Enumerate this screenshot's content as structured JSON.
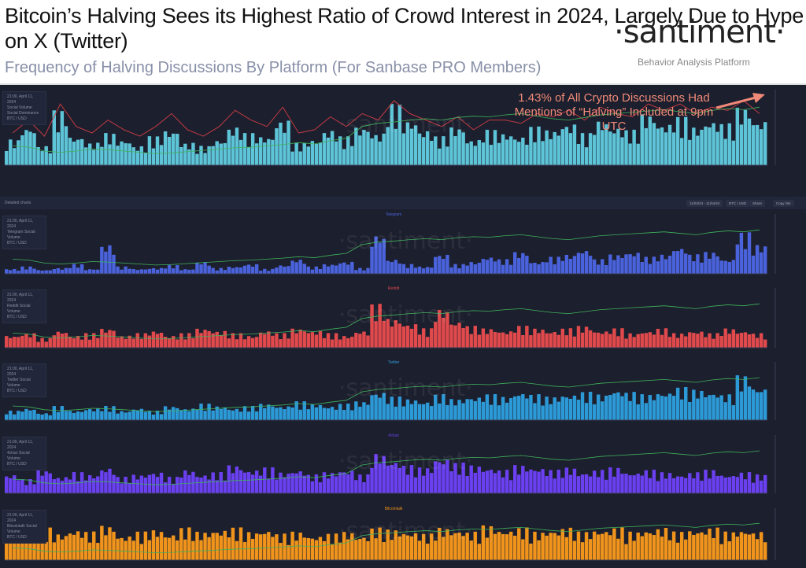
{
  "header": {
    "title": "Bitcoin’s Halving Sees its Highest Ratio of Crowd Interest in 2024, Largely Due to Hype on X (Twitter)",
    "subtitle": "Frequency of Halving Discussions By Platform (For Sanbase PRO Members)",
    "logo": "·santiment·",
    "logo_tagline": "Behavior Analysis Platform"
  },
  "annotation": "1.43% of All Crypto Discussions Had Mentions of “Halving” Included at 9pm UTC",
  "watermark": "·santiment·",
  "toolbar": {
    "section": "Detailed charts",
    "date_range": "11/03/24 - 11/04/24",
    "pair": "BTC / USD",
    "share": "Share",
    "copy_link": "Copy link"
  },
  "colors": {
    "social_volume": "#5ec4d8",
    "social_dominance": "#c23a44",
    "btc_price": "#3fb35c",
    "telegram": "#4a63dc",
    "reddit": "#e04a4c",
    "twitter": "#2d9ad8",
    "4chan": "#6a40f0",
    "bitcointalk": "#f0941c"
  },
  "chart_data": [
    {
      "type": "bar",
      "title": "",
      "legend": {
        "timestamp": "21:00, April 11, 2024",
        "items": [
          "Social Volume",
          "Social Dominance",
          "BTC / USD"
        ]
      },
      "series": [
        {
          "name": "Social Volume",
          "values": [
            40,
            60,
            30,
            85,
            45,
            35,
            50,
            40,
            30,
            45,
            55,
            35,
            30,
            40,
            60,
            50,
            45,
            70,
            35,
            40,
            55,
            45,
            60,
            50,
            95,
            70,
            55,
            45,
            60,
            40,
            55,
            50,
            45,
            60,
            55,
            65,
            50,
            70,
            60,
            55,
            80,
            65,
            75,
            60,
            70,
            65,
            90,
            70
          ]
        },
        {
          "name": "Social Dominance",
          "values": [
            50,
            70,
            45,
            95,
            60,
            50,
            70,
            55,
            45,
            60,
            80,
            55,
            45,
            60,
            85,
            70,
            60,
            90,
            50,
            55,
            75,
            60,
            80,
            70,
            100,
            80,
            70,
            60,
            75,
            55,
            70,
            70,
            65,
            80,
            75,
            85,
            70,
            90,
            80,
            75,
            95,
            85,
            95,
            80,
            90,
            85,
            100,
            80
          ]
        },
        {
          "name": "BTC / USD",
          "values": [
            30,
            28,
            22,
            20,
            22,
            25,
            24,
            22,
            20,
            18,
            19,
            21,
            23,
            25,
            27,
            28,
            30,
            32,
            35,
            33,
            38,
            42,
            60,
            65,
            67,
            70,
            72,
            70,
            74,
            76,
            75,
            78,
            80,
            76,
            72,
            70,
            74,
            78,
            80,
            82,
            84,
            86,
            83,
            80,
            85,
            88,
            86,
            90
          ]
        }
      ]
    },
    {
      "type": "bar",
      "title": "Telegram",
      "legend": {
        "timestamp": "21:00, April 11, 2024",
        "items": [
          "Telegram Social Volume",
          "BTC / USD"
        ]
      },
      "series": [
        {
          "name": "Telegram Social Volume",
          "values": [
            10,
            15,
            8,
            12,
            20,
            10,
            60,
            15,
            10,
            12,
            18,
            10,
            25,
            12,
            15,
            20,
            10,
            18,
            30,
            15,
            20,
            25,
            12,
            80,
            30,
            20,
            15,
            40,
            20,
            25,
            35,
            30,
            45,
            25,
            35,
            40,
            50,
            30,
            40,
            45,
            35,
            40,
            55,
            40,
            45,
            30,
            85,
            60
          ]
        }
      ]
    },
    {
      "type": "bar",
      "title": "Reddit",
      "legend": {
        "timestamp": "21:00, April 11, 2024",
        "items": [
          "Reddit Social Volume",
          "BTC / USD"
        ]
      },
      "series": [
        {
          "name": "Reddit Social Volume",
          "values": [
            25,
            30,
            20,
            35,
            25,
            30,
            40,
            25,
            30,
            35,
            25,
            30,
            40,
            35,
            30,
            25,
            35,
            30,
            40,
            35,
            30,
            25,
            35,
            90,
            60,
            50,
            40,
            80,
            55,
            45,
            40,
            35,
            45,
            40,
            35,
            40,
            45,
            35,
            40,
            30,
            35,
            40,
            30,
            35,
            30,
            40,
            35,
            30
          ]
        }
      ]
    },
    {
      "type": "bar",
      "title": "Twitter",
      "legend": {
        "timestamp": "21:00, April 11, 2024",
        "items": [
          "Twitter Social Volume",
          "BTC / USD"
        ]
      },
      "series": [
        {
          "name": "Twitter Social Volume",
          "values": [
            20,
            25,
            15,
            30,
            20,
            25,
            30,
            20,
            25,
            20,
            30,
            25,
            35,
            30,
            25,
            30,
            35,
            30,
            40,
            35,
            30,
            35,
            40,
            60,
            50,
            45,
            40,
            55,
            45,
            50,
            55,
            50,
            60,
            55,
            50,
            55,
            60,
            55,
            65,
            60,
            55,
            60,
            70,
            65,
            60,
            55,
            95,
            70
          ]
        }
      ]
    },
    {
      "type": "bar",
      "title": "4chan",
      "legend": {
        "timestamp": "21:00, April 11, 2024",
        "items": [
          "4chan Social Volume",
          "BTC / USD"
        ]
      },
      "series": [
        {
          "name": "4chan Social Volume",
          "values": [
            40,
            30,
            50,
            35,
            45,
            40,
            55,
            35,
            40,
            45,
            35,
            50,
            40,
            45,
            60,
            50,
            55,
            45,
            50,
            40,
            45,
            50,
            40,
            85,
            70,
            60,
            55,
            75,
            65,
            60,
            55,
            50,
            60,
            55,
            50,
            55,
            45,
            50,
            55,
            45,
            50,
            45,
            40,
            45,
            50,
            40,
            45,
            40
          ]
        }
      ]
    },
    {
      "type": "bar",
      "title": "Bitcointalk",
      "legend": {
        "timestamp": "21:00, April 11, 2024",
        "items": [
          "Bitcointalk Social Volume",
          "BTC / USD"
        ]
      },
      "series": [
        {
          "name": "Bitcointalk Social Volume",
          "values": [
            70,
            60,
            80,
            65,
            75,
            70,
            85,
            60,
            70,
            75,
            65,
            80,
            70,
            75,
            80,
            70,
            75,
            65,
            70,
            60,
            65,
            70,
            60,
            80,
            75,
            70,
            65,
            80,
            75,
            70,
            85,
            75,
            80,
            70,
            75,
            80,
            70,
            75,
            80,
            70,
            75,
            80,
            70,
            75,
            80,
            70,
            75,
            70
          ]
        }
      ]
    }
  ]
}
